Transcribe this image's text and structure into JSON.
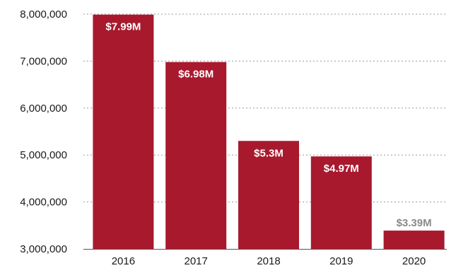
{
  "chart_data": {
    "type": "bar",
    "categories": [
      "2016",
      "2017",
      "2018",
      "2019",
      "2020"
    ],
    "values": [
      7990000,
      6980000,
      5300000,
      4970000,
      3390000
    ],
    "data_labels": [
      "$7.99M",
      "$6.98M",
      "$5.3M",
      "$4.97M",
      "$3.39M"
    ],
    "title": "",
    "xlabel": "",
    "ylabel": "",
    "ylim": [
      3000000,
      8000000
    ],
    "yticks": [
      3000000,
      4000000,
      5000000,
      6000000,
      7000000,
      8000000
    ],
    "ytick_labels": [
      "3,000,000",
      "4,000,000",
      "5,000,000",
      "6,000,000",
      "7,000,000",
      "8,000,000"
    ],
    "grid": true,
    "bar_color": "#a8192e",
    "label_inside_color": "#ffffff",
    "label_outside_color": "#8a8a8a"
  }
}
